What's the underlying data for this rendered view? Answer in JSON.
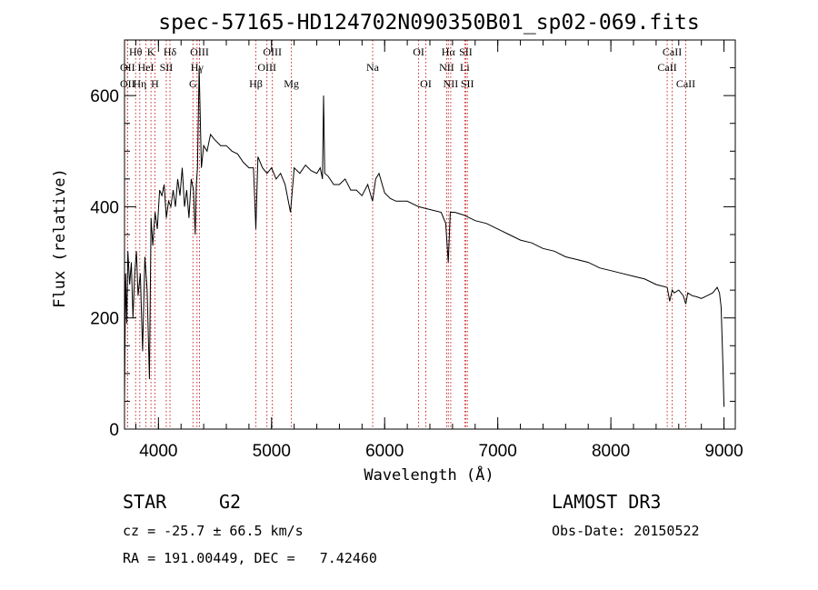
{
  "chart_data": {
    "type": "line",
    "title": "spec-57165-HD124702N090350B01_sp02-069.fits",
    "xlabel": "Wavelength (Å)",
    "ylabel": "Flux (relative)",
    "xlim": [
      3700,
      9100
    ],
    "ylim": [
      0,
      700
    ],
    "x_ticks": [
      4000,
      5000,
      6000,
      7000,
      8000,
      9000
    ],
    "x_tick_labels": [
      "4000",
      "5000",
      "6000",
      "7000",
      "8000",
      "9000"
    ],
    "y_ticks": [
      0,
      200,
      400,
      600
    ],
    "y_tick_labels": [
      "0",
      "200",
      "400",
      "600"
    ],
    "x_minor_step": 200,
    "y_minor_step": 50,
    "series": [
      {
        "name": "flux",
        "x": [
          3700,
          3710,
          3720,
          3730,
          3745,
          3760,
          3775,
          3790,
          3805,
          3820,
          3840,
          3860,
          3880,
          3900,
          3920,
          3935,
          3950,
          3970,
          3990,
          4010,
          4030,
          4050,
          4070,
          4090,
          4110,
          4130,
          4150,
          4170,
          4190,
          4210,
          4230,
          4250,
          4270,
          4290,
          4310,
          4325,
          4335,
          4345,
          4360,
          4380,
          4400,
          4430,
          4460,
          4500,
          4550,
          4600,
          4650,
          4700,
          4750,
          4800,
          4840,
          4861,
          4880,
          4920,
          4960,
          5000,
          5040,
          5080,
          5120,
          5167,
          5200,
          5250,
          5300,
          5350,
          5400,
          5430,
          5450,
          5460,
          5470,
          5500,
          5550,
          5600,
          5650,
          5700,
          5750,
          5800,
          5850,
          5893,
          5920,
          5950,
          6000,
          6050,
          6100,
          6200,
          6300,
          6400,
          6500,
          6540,
          6562,
          6580,
          6620,
          6700,
          6800,
          6900,
          7000,
          7100,
          7200,
          7300,
          7400,
          7500,
          7600,
          7700,
          7800,
          7900,
          8000,
          8100,
          8200,
          8300,
          8400,
          8498,
          8520,
          8542,
          8560,
          8600,
          8640,
          8662,
          8680,
          8720,
          8760,
          8800,
          8850,
          8900,
          8940,
          8960,
          8975,
          8990,
          9000
        ],
        "y": [
          50,
          280,
          190,
          320,
          260,
          300,
          200,
          280,
          320,
          240,
          280,
          140,
          310,
          250,
          90,
          380,
          330,
          390,
          360,
          430,
          420,
          440,
          380,
          410,
          400,
          430,
          400,
          450,
          420,
          470,
          400,
          430,
          380,
          450,
          430,
          350,
          440,
          470,
          650,
          470,
          510,
          500,
          530,
          520,
          510,
          510,
          500,
          495,
          480,
          470,
          470,
          360,
          490,
          470,
          460,
          470,
          450,
          460,
          440,
          390,
          470,
          460,
          475,
          465,
          460,
          470,
          450,
          600,
          460,
          455,
          440,
          440,
          450,
          430,
          430,
          420,
          440,
          410,
          450,
          460,
          425,
          415,
          410,
          410,
          400,
          395,
          390,
          370,
          300,
          390,
          390,
          385,
          375,
          370,
          360,
          350,
          340,
          335,
          325,
          320,
          310,
          305,
          300,
          290,
          285,
          280,
          275,
          270,
          260,
          255,
          230,
          250,
          245,
          250,
          240,
          225,
          245,
          240,
          238,
          235,
          240,
          245,
          255,
          245,
          220,
          120,
          40
        ]
      }
    ],
    "spectral_lines": [
      {
        "label": "Hθ",
        "wavelength": 3798,
        "row": 0
      },
      {
        "label": "OII",
        "wavelength": 3727,
        "row": 1
      },
      {
        "label": "OII",
        "wavelength": 3727,
        "row": 2
      },
      {
        "label": "HeI",
        "wavelength": 3889,
        "row": 1
      },
      {
        "label": "K",
        "wavelength": 3934,
        "row": 0
      },
      {
        "label": "Hη",
        "wavelength": 3835,
        "row": 2
      },
      {
        "label": "H",
        "wavelength": 3969,
        "row": 2
      },
      {
        "label": "SII",
        "wavelength": 4069,
        "row": 1
      },
      {
        "label": "Hδ",
        "wavelength": 4102,
        "row": 0
      },
      {
        "label": "OIII",
        "wavelength": 4363,
        "row": 0
      },
      {
        "label": "Hγ",
        "wavelength": 4341,
        "row": 1
      },
      {
        "label": "G",
        "wavelength": 4305,
        "row": 2
      },
      {
        "label": "Hβ",
        "wavelength": 4861,
        "row": 2
      },
      {
        "label": "OIII",
        "wavelength": 5007,
        "row": 0
      },
      {
        "label": "OIII",
        "wavelength": 4959,
        "row": 1
      },
      {
        "label": "Mg",
        "wavelength": 5175,
        "row": 2
      },
      {
        "label": "Na",
        "wavelength": 5894,
        "row": 1
      },
      {
        "label": "OI",
        "wavelength": 6300,
        "row": 0
      },
      {
        "label": "OI",
        "wavelength": 6364,
        "row": 2
      },
      {
        "label": "Hα",
        "wavelength": 6563,
        "row": 0
      },
      {
        "label": "NII",
        "wavelength": 6548,
        "row": 1
      },
      {
        "label": "NII",
        "wavelength": 6584,
        "row": 2
      },
      {
        "label": "SII",
        "wavelength": 6717,
        "row": 0
      },
      {
        "label": "Li",
        "wavelength": 6708,
        "row": 1
      },
      {
        "label": "SII",
        "wavelength": 6731,
        "row": 2
      },
      {
        "label": "CaII",
        "wavelength": 8542,
        "row": 0
      },
      {
        "label": "CaII",
        "wavelength": 8498,
        "row": 1
      },
      {
        "label": "CaII",
        "wavelength": 8662,
        "row": 2
      }
    ]
  },
  "info": {
    "object_class": "STAR",
    "subclass": "G2",
    "survey": "LAMOST DR3",
    "redshift": "cz = -25.7 ± 66.5 km/s",
    "obs_date": "Obs-Date: 20150522",
    "coords": "RA = 191.00449, DEC =   7.42460"
  },
  "colors": {
    "line_marker": "#cc2a2a",
    "spectrum": "#000000",
    "axes": "#000000"
  }
}
